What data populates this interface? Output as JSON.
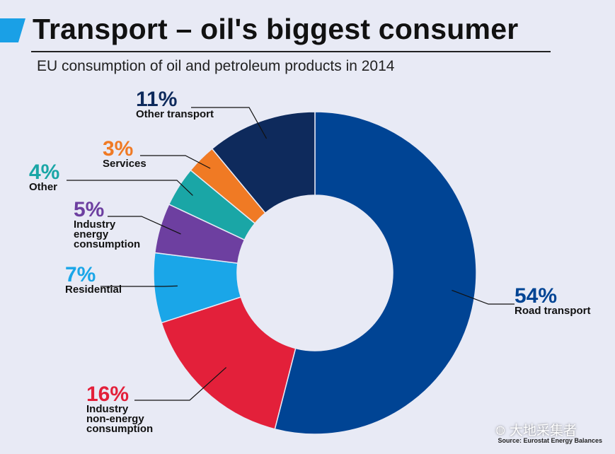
{
  "header": {
    "title": "Transport – oil's biggest consumer",
    "subtitle": "EU consumption of oil and petroleum products in 2014"
  },
  "chart_data": {
    "type": "pie",
    "style": "donut",
    "title": "Transport – oil's biggest consumer",
    "subtitle": "EU consumption of oil and petroleum products in 2014",
    "unit": "%",
    "slices": [
      {
        "label": "Road transport",
        "value": 54,
        "pct_label": "54%",
        "label_lines": [
          "Road transport"
        ],
        "color": "#004494",
        "pct_color": "#004494"
      },
      {
        "label": "Industry non-energy consumption",
        "value": 16,
        "pct_label": "16%",
        "label_lines": [
          "Industry",
          "non-energy",
          "consumption"
        ],
        "color": "#e3203a",
        "pct_color": "#e3203a"
      },
      {
        "label": "Residential",
        "value": 7,
        "pct_label": "7%",
        "label_lines": [
          "Residential"
        ],
        "color": "#1aa6e8",
        "pct_color": "#1aa6e8"
      },
      {
        "label": "Industry energy consumption",
        "value": 5,
        "pct_label": "5%",
        "label_lines": [
          "Industry",
          "energy",
          "consumption"
        ],
        "color": "#6d3fa0",
        "pct_color": "#6d3fa0"
      },
      {
        "label": "Other",
        "value": 4,
        "pct_label": "4%",
        "label_lines": [
          "Other"
        ],
        "color": "#1aa6a6",
        "pct_color": "#1aa6a6"
      },
      {
        "label": "Services",
        "value": 3,
        "pct_label": "3%",
        "label_lines": [
          "Services"
        ],
        "color": "#f07a24",
        "pct_color": "#f07a24"
      },
      {
        "label": "Other transport",
        "value": 11,
        "pct_label": "11%",
        "label_lines": [
          "Other transport"
        ],
        "color": "#0e2a5c",
        "pct_color": "#0e2a5c"
      }
    ]
  },
  "footer": {
    "source": "Source: Eurostat Energy Balances",
    "watermark": "大地采集者"
  },
  "colors": {
    "background": "#e8eaf5",
    "accent": "#1aa0e6"
  }
}
